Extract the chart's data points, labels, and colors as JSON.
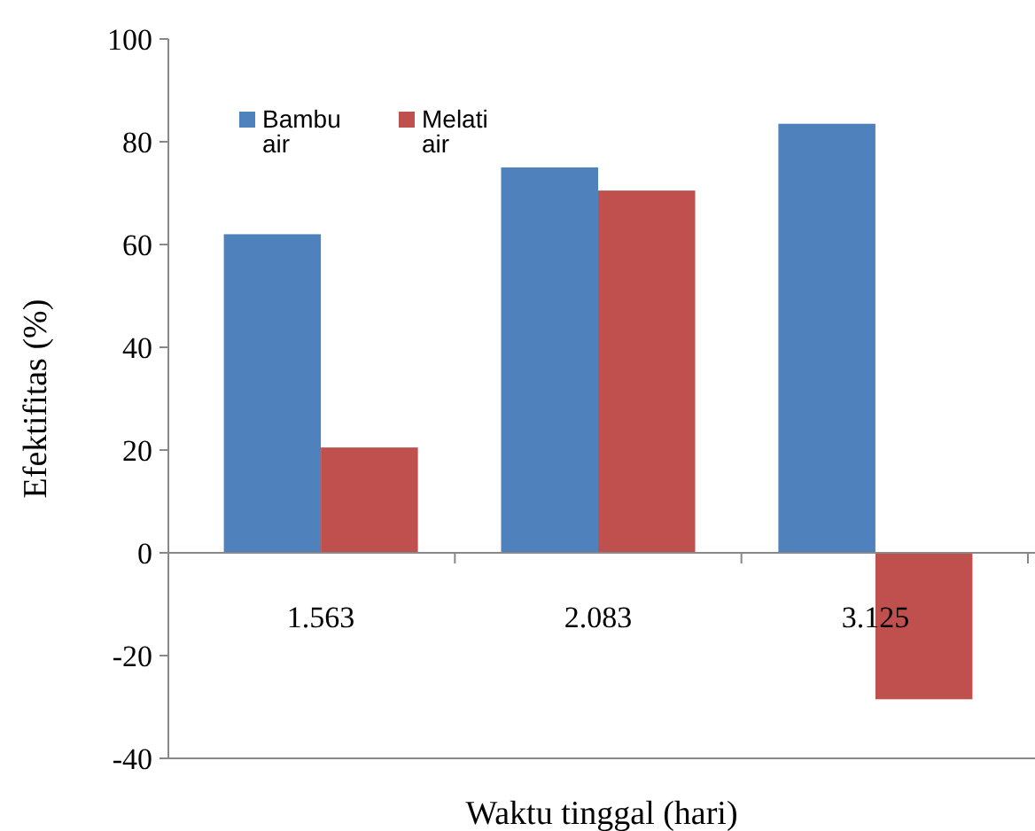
{
  "chart_data": {
    "type": "bar",
    "xlabel": "Waktu tinggal (hari)",
    "ylabel": "Efektifitas (%)",
    "categories": [
      "1.563",
      "2.083",
      "3.125"
    ],
    "series": [
      {
        "name": "Bambu air",
        "color": "#4f81bd",
        "values": [
          62,
          75,
          83.5
        ]
      },
      {
        "name": "Melati air",
        "color": "#c0504d",
        "values": [
          20.5,
          70.5,
          -28.5
        ]
      }
    ],
    "ylim": [
      -40,
      100
    ],
    "yticks": [
      -40,
      -20,
      0,
      20,
      40,
      60,
      80,
      100
    ],
    "legend": "top left"
  }
}
